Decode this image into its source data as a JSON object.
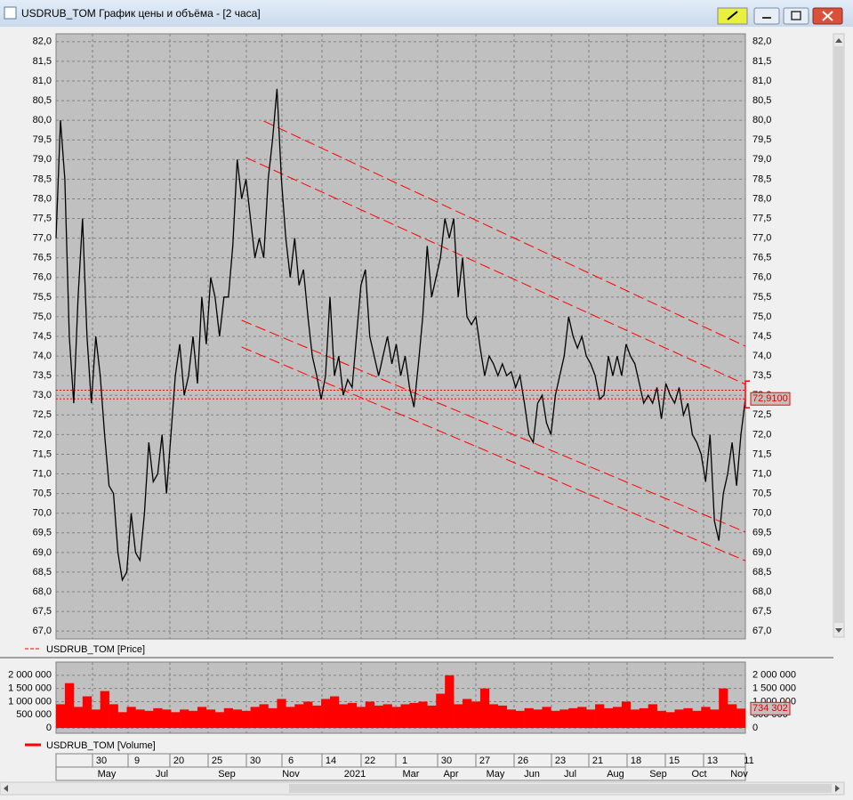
{
  "window": {
    "title": "USDRUB_TOM График цены и объёма - [2 часа]"
  },
  "chart_data": [
    {
      "type": "line",
      "series": [
        {
          "name": "USDRUB_TOM [Price]",
          "color": "#000000",
          "values": [
            77.0,
            80.0,
            78.5,
            74.5,
            72.8,
            75.5,
            77.5,
            74.5,
            72.8,
            74.5,
            73.5,
            72.0,
            70.7,
            70.5,
            69.0,
            68.3,
            68.5,
            70.0,
            69.0,
            68.8,
            70.0,
            71.8,
            70.8,
            71.0,
            72.0,
            70.5,
            72.0,
            73.5,
            74.3,
            73.0,
            73.5,
            74.5,
            73.3,
            75.5,
            74.3,
            76.0,
            75.5,
            74.5,
            75.5,
            75.5,
            76.8,
            79.0,
            78.0,
            78.5,
            77.5,
            76.5,
            77.0,
            76.5,
            78.5,
            79.5,
            80.8,
            78.5,
            77.0,
            76.0,
            77.0,
            75.8,
            76.2,
            75.0,
            74.0,
            73.5,
            72.9,
            73.5,
            75.5,
            73.5,
            74.0,
            73.0,
            73.4,
            73.2,
            74.5,
            75.8,
            76.2,
            74.5,
            74.0,
            73.5,
            74.0,
            74.5,
            73.8,
            74.3,
            73.5,
            74.0,
            73.2,
            72.7,
            73.8,
            75.0,
            76.8,
            75.5,
            76.0,
            76.5,
            77.5,
            77.0,
            77.5,
            75.5,
            76.5,
            75.0,
            74.8,
            75.0,
            74.2,
            73.5,
            74.0,
            73.8,
            73.5,
            73.8,
            73.5,
            73.6,
            73.2,
            73.5,
            72.8,
            72.0,
            71.8,
            72.8,
            73.0,
            72.3,
            72.0,
            73.0,
            73.5,
            74.0,
            75.0,
            74.5,
            74.2,
            74.5,
            74.0,
            73.8,
            73.5,
            72.9,
            73.0,
            74.0,
            73.5,
            74.0,
            73.5,
            74.3,
            74.0,
            73.8,
            73.3,
            72.8,
            73.0,
            72.8,
            73.2,
            72.4,
            73.3,
            73.0,
            72.8,
            73.2,
            72.5,
            72.8,
            72.0,
            71.8,
            71.5,
            70.8,
            72.0,
            69.8,
            69.3,
            70.5,
            71.0,
            71.8,
            70.7,
            72.0,
            72.91
          ]
        }
      ],
      "ylim": [
        66.8,
        82.2
      ],
      "yticks": [
        {
          "value": 67.0,
          "label": "67,0"
        },
        {
          "value": 67.5,
          "label": "67,5"
        },
        {
          "value": 68.0,
          "label": "68,0"
        },
        {
          "value": 68.5,
          "label": "68,5"
        },
        {
          "value": 69.0,
          "label": "69,0"
        },
        {
          "value": 69.5,
          "label": "69,5"
        },
        {
          "value": 70.0,
          "label": "70,0"
        },
        {
          "value": 70.5,
          "label": "70,5"
        },
        {
          "value": 71.0,
          "label": "71,0"
        },
        {
          "value": 71.5,
          "label": "71,5"
        },
        {
          "value": 72.0,
          "label": "72,0"
        },
        {
          "value": 72.5,
          "label": "72,5"
        },
        {
          "value": 73.0,
          "label": "73,0"
        },
        {
          "value": 73.5,
          "label": "73,5"
        },
        {
          "value": 74.0,
          "label": "74,0"
        },
        {
          "value": 74.5,
          "label": "74,5"
        },
        {
          "value": 75.0,
          "label": "75,0"
        },
        {
          "value": 75.5,
          "label": "75,5"
        },
        {
          "value": 76.0,
          "label": "76,0"
        },
        {
          "value": 76.5,
          "label": "76,5"
        },
        {
          "value": 77.0,
          "label": "77,0"
        },
        {
          "value": 77.5,
          "label": "77,5"
        },
        {
          "value": 78.0,
          "label": "78,0"
        },
        {
          "value": 78.5,
          "label": "78,5"
        },
        {
          "value": 79.0,
          "label": "79,0"
        },
        {
          "value": 79.5,
          "label": "79,5"
        },
        {
          "value": 80.0,
          "label": "80,0"
        },
        {
          "value": 80.5,
          "label": "80,5"
        },
        {
          "value": 81.0,
          "label": "81,0"
        },
        {
          "value": 81.5,
          "label": "81,5"
        },
        {
          "value": 82.0,
          "label": "82,0"
        }
      ],
      "grid": true,
      "last_value": {
        "value": 72.91,
        "label": "72,9100"
      },
      "levels": [
        73.13
      ],
      "trendlines": [
        {
          "start_index": 47,
          "start": 79.98,
          "end_index": 156,
          "end": 74.25
        },
        {
          "start_index": 43,
          "start": 79.05,
          "end_index": 156,
          "end": 73.28
        },
        {
          "start_index": 42,
          "start": 74.91,
          "end_index": 156,
          "end": 69.52
        },
        {
          "start_index": 42,
          "start": 74.23,
          "end_index": 156,
          "end": 68.79
        }
      ]
    },
    {
      "type": "bar",
      "series": [
        {
          "name": "USDRUB_TOM [Volume]",
          "color": "#ff0000",
          "values": [
            900000,
            1700000,
            800000,
            1200000,
            700000,
            1400000,
            900000,
            600000,
            800000,
            700000,
            650000,
            750000,
            700000,
            600000,
            700000,
            650000,
            800000,
            700000,
            600000,
            750000,
            700000,
            650000,
            800000,
            900000,
            750000,
            1100000,
            800000,
            900000,
            1000000,
            850000,
            1100000,
            1200000,
            900000,
            950000,
            800000,
            1000000,
            850000,
            900000,
            800000,
            900000,
            950000,
            1000000,
            850000,
            1300000,
            2000000,
            900000,
            1100000,
            1000000,
            1500000,
            900000,
            850000,
            700000,
            650000,
            750000,
            700000,
            800000,
            650000,
            700000,
            750000,
            800000,
            700000,
            900000,
            750000,
            800000,
            1000000,
            700000,
            750000,
            900000,
            650000,
            600000,
            700000,
            750000,
            650000,
            800000,
            700000,
            1500000,
            900000,
            734302
          ]
        }
      ],
      "ylim": [
        -200000,
        2500000
      ],
      "yticks": [
        0,
        {
          "value": 500000,
          "label": "500 000"
        },
        {
          "value": 1000000,
          "label": "1 000 000"
        },
        {
          "value": 1500000,
          "label": "1 500 000"
        },
        {
          "value": 2000000,
          "label": "2 000 000"
        }
      ],
      "grid": true,
      "last_value": {
        "value": 734302,
        "label": "734 302"
      }
    }
  ],
  "time_axis": {
    "days": [
      "30",
      "9",
      "20",
      "25",
      "30",
      "6",
      "14",
      "22",
      "1",
      "30",
      "27",
      "26",
      "23",
      "21",
      "18",
      "15",
      "13",
      "11"
    ],
    "months": [
      "May",
      "Jul",
      "Sep",
      "Nov",
      "2021",
      "Mar",
      "Apr",
      "May",
      "Jun",
      "Jul",
      "Aug",
      "Sep",
      "Oct",
      "Nov"
    ]
  }
}
